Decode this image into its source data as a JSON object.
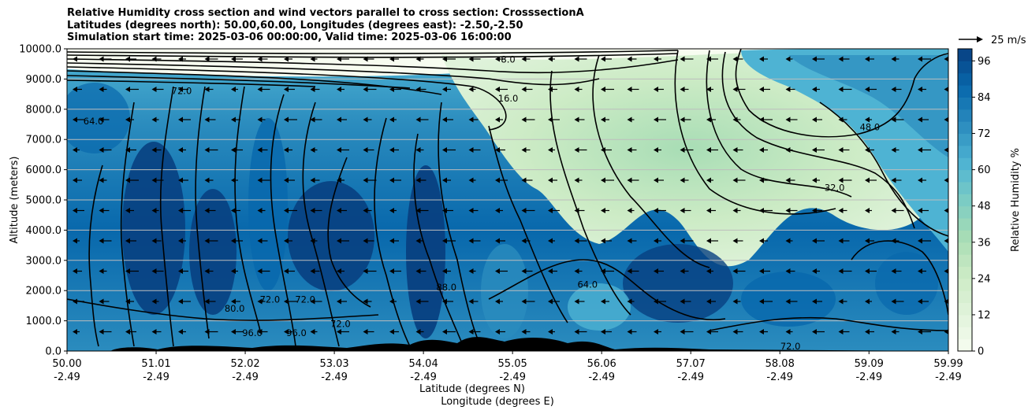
{
  "title_lines": [
    "Relative Humidity cross section and wind vectors parallel to cross section: CrosssectionA",
    "Latitudes (degrees north): 50.00,60.00, Longitudes (degrees east): -2.50,-2.50",
    "Simulation start time: 2025-03-06 00:00:00, Valid time: 2025-03-06 16:00:00"
  ],
  "quiver_key_label": "25 m/s",
  "chart_data": {
    "type": "heatmap",
    "ylabel": "Altitude (meters)",
    "xlabel_line1": "Latitude (degrees N)",
    "xlabel_line2": "Longitude (degrees E)",
    "ylim": [
      0,
      10000
    ],
    "y_ticks": [
      "0.0",
      "1000.0",
      "2000.0",
      "3000.0",
      "4000.0",
      "5000.0",
      "6000.0",
      "7000.0",
      "8000.0",
      "9000.0",
      "10000.0"
    ],
    "x_ticks_lat": [
      "50.00",
      "51.01",
      "52.02",
      "53.03",
      "54.04",
      "55.05",
      "56.06",
      "57.07",
      "58.08",
      "59.09",
      "59.99"
    ],
    "x_ticks_lon": [
      "-2.49",
      "-2.49",
      "-2.49",
      "-2.49",
      "-2.49",
      "-2.49",
      "-2.49",
      "-2.49",
      "-2.49",
      "-2.49",
      "-2.49"
    ],
    "colorbar": {
      "label": "Relative Humidity %",
      "ticks": [
        "0",
        "12",
        "24",
        "36",
        "48",
        "60",
        "72",
        "84",
        "96"
      ],
      "range": [
        0,
        100
      ],
      "levels": 25,
      "colors": [
        "#f7fcf0",
        "#e0f3db",
        "#ccebc5",
        "#a8ddb5",
        "#7bccc4",
        "#4eb3d3",
        "#2b8cbe",
        "#0868ac",
        "#084081"
      ]
    },
    "wind_direction": "northward component toward lower latitudes (arrows pointing left)",
    "contour_labels": [
      {
        "text": "8.0",
        "lat": 55.0,
        "alt": 9550
      },
      {
        "text": "16.0",
        "lat": 55.0,
        "alt": 8250
      },
      {
        "text": "72.0",
        "lat": 51.3,
        "alt": 8500
      },
      {
        "text": "64.0",
        "lat": 50.3,
        "alt": 7500
      },
      {
        "text": "48.0",
        "lat": 59.1,
        "alt": 7300
      },
      {
        "text": "32.0",
        "lat": 58.7,
        "alt": 5300
      },
      {
        "text": "88.0",
        "lat": 54.3,
        "alt": 2000
      },
      {
        "text": "72.0",
        "lat": 52.3,
        "alt": 1600
      },
      {
        "text": "72.0",
        "lat": 52.7,
        "alt": 1600
      },
      {
        "text": "80.0",
        "lat": 51.9,
        "alt": 1300
      },
      {
        "text": "96.0",
        "lat": 52.1,
        "alt": 500
      },
      {
        "text": "96.0",
        "lat": 52.6,
        "alt": 500
      },
      {
        "text": "72.0",
        "lat": 53.1,
        "alt": 800
      },
      {
        "text": "64.0",
        "lat": 55.9,
        "alt": 2100
      },
      {
        "text": "72.0",
        "lat": 58.2,
        "alt": 50
      }
    ]
  }
}
